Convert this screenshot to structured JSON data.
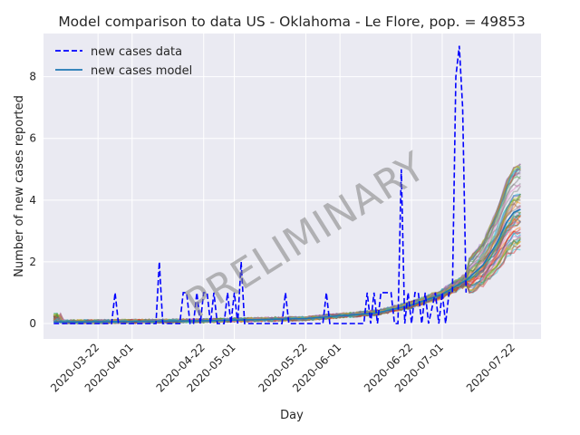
{
  "chart_data": {
    "type": "line",
    "title": "Model comparison to data US - Oklahoma - Le Flore, pop. = 49853",
    "xlabel": "Day",
    "ylabel": "Number of new cases reported",
    "watermark": "PRELIMINARY",
    "grid": true,
    "legend_position": "top-left",
    "x_start": "2020-03-09",
    "x_end": "2020-07-24",
    "xlim": [
      "2020-03-06",
      "2020-07-30"
    ],
    "ylim": [
      -0.5,
      9.4
    ],
    "x_ticks": [
      "2020-03-22",
      "2020-04-01",
      "2020-04-22",
      "2020-05-01",
      "2020-05-22",
      "2020-06-01",
      "2020-06-22",
      "2020-07-01",
      "2020-07-22"
    ],
    "y_ticks": [
      0,
      2,
      4,
      6,
      8
    ],
    "ensemble": {
      "description": "many overlapping model realizations",
      "count": 60
    },
    "series": [
      {
        "name": "new cases data",
        "style": "dashed",
        "color": "#0000ff",
        "points": [
          [
            "2020-03-09",
            0
          ],
          [
            "2020-03-26",
            0
          ],
          [
            "2020-03-27",
            1
          ],
          [
            "2020-03-28",
            0
          ],
          [
            "2020-04-08",
            0
          ],
          [
            "2020-04-09",
            2
          ],
          [
            "2020-04-10",
            0
          ],
          [
            "2020-04-15",
            0
          ],
          [
            "2020-04-16",
            1
          ],
          [
            "2020-04-17",
            1
          ],
          [
            "2020-04-18",
            0
          ],
          [
            "2020-04-19",
            0
          ],
          [
            "2020-04-20",
            1
          ],
          [
            "2020-04-21",
            0
          ],
          [
            "2020-04-22",
            1
          ],
          [
            "2020-04-23",
            1
          ],
          [
            "2020-04-24",
            0
          ],
          [
            "2020-04-25",
            1
          ],
          [
            "2020-04-26",
            0
          ],
          [
            "2020-04-28",
            0
          ],
          [
            "2020-04-29",
            1
          ],
          [
            "2020-04-30",
            0
          ],
          [
            "2020-05-01",
            1
          ],
          [
            "2020-05-02",
            0
          ],
          [
            "2020-05-03",
            2
          ],
          [
            "2020-05-04",
            0
          ],
          [
            "2020-05-15",
            0
          ],
          [
            "2020-05-16",
            1
          ],
          [
            "2020-05-17",
            0
          ],
          [
            "2020-05-27",
            0
          ],
          [
            "2020-05-28",
            1
          ],
          [
            "2020-05-29",
            0
          ],
          [
            "2020-06-08",
            0
          ],
          [
            "2020-06-09",
            1
          ],
          [
            "2020-06-10",
            0
          ],
          [
            "2020-06-11",
            1
          ],
          [
            "2020-06-12",
            0
          ],
          [
            "2020-06-13",
            1
          ],
          [
            "2020-06-14",
            1
          ],
          [
            "2020-06-15",
            1
          ],
          [
            "2020-06-16",
            1
          ],
          [
            "2020-06-17",
            0
          ],
          [
            "2020-06-18",
            0
          ],
          [
            "2020-06-19",
            5
          ],
          [
            "2020-06-20",
            0
          ],
          [
            "2020-06-21",
            1
          ],
          [
            "2020-06-22",
            0
          ],
          [
            "2020-06-23",
            1
          ],
          [
            "2020-06-24",
            1
          ],
          [
            "2020-06-25",
            0
          ],
          [
            "2020-06-26",
            1
          ],
          [
            "2020-06-27",
            0
          ],
          [
            "2020-06-29",
            1
          ],
          [
            "2020-06-30",
            0
          ],
          [
            "2020-07-01",
            1
          ],
          [
            "2020-07-02",
            0
          ],
          [
            "2020-07-03",
            1
          ],
          [
            "2020-07-04",
            1
          ],
          [
            "2020-07-05",
            8
          ],
          [
            "2020-07-06",
            9
          ],
          [
            "2020-07-07",
            7
          ],
          [
            "2020-07-08",
            1
          ]
        ]
      },
      {
        "name": "new cases model",
        "style": "solid",
        "color": "#1f77b4",
        "points": [
          [
            "2020-03-09",
            0.05
          ],
          [
            "2020-03-22",
            0.06
          ],
          [
            "2020-04-01",
            0.07
          ],
          [
            "2020-04-22",
            0.09
          ],
          [
            "2020-05-01",
            0.11
          ],
          [
            "2020-05-22",
            0.16
          ],
          [
            "2020-06-01",
            0.25
          ],
          [
            "2020-06-12",
            0.35
          ],
          [
            "2020-06-22",
            0.6
          ],
          [
            "2020-07-01",
            0.95
          ],
          [
            "2020-07-08",
            1.4
          ],
          [
            "2020-07-13",
            1.9
          ],
          [
            "2020-07-17",
            2.6
          ],
          [
            "2020-07-20",
            3.3
          ],
          [
            "2020-07-22",
            3.6
          ],
          [
            "2020-07-24",
            3.7
          ]
        ]
      }
    ]
  }
}
